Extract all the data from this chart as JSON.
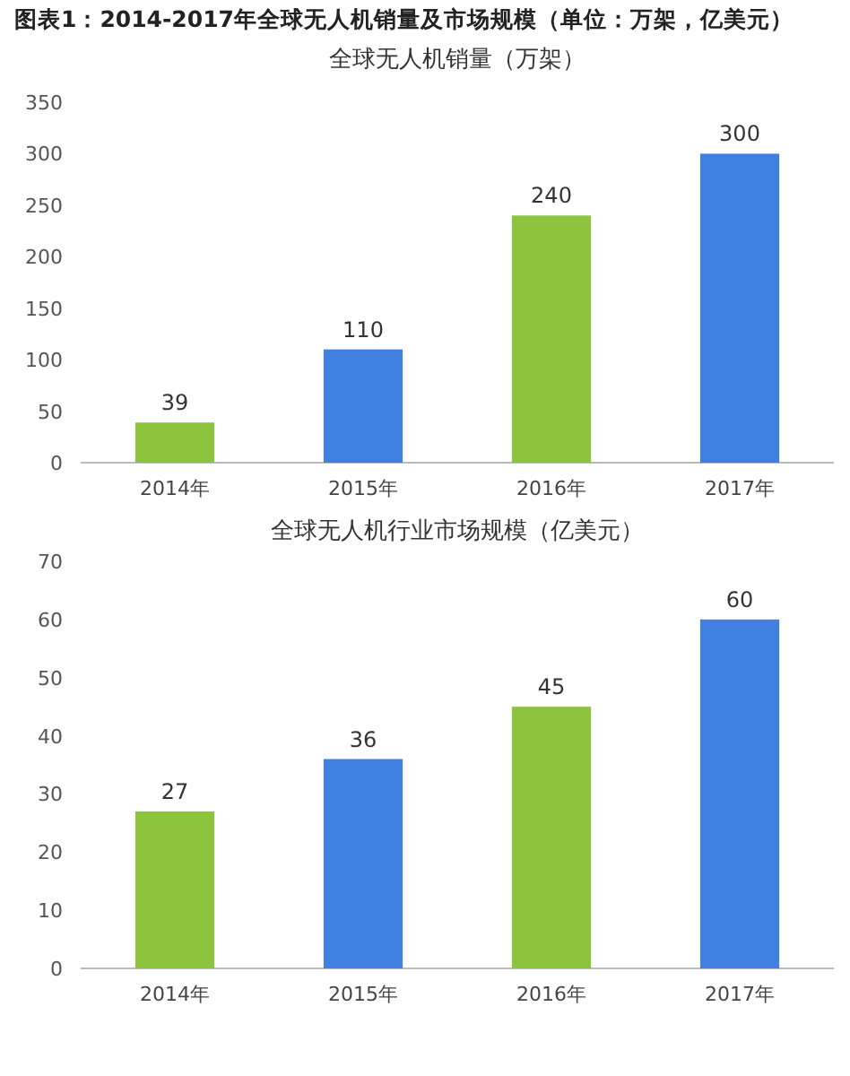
{
  "chart_data": [
    {
      "type": "bar",
      "title": "图表1：2014-2017年全球无人机销量及市场规模（单位：万架，亿美元）",
      "subtitle": "全球无人机销量（万架）",
      "categories": [
        "2014年",
        "2015年",
        "2016年",
        "2017年"
      ],
      "values": [
        39,
        110,
        240,
        300
      ],
      "colors": [
        "#8cc43e",
        "#3f80e0",
        "#8cc43e",
        "#3f80e0"
      ],
      "ylim": [
        0,
        350
      ],
      "yticks": [
        0,
        50,
        100,
        150,
        200,
        250,
        300,
        350
      ],
      "data_labels": true,
      "grid": false
    },
    {
      "type": "bar",
      "title": "全球无人机行业市场规模（亿美元）",
      "categories": [
        "2014年",
        "2015年",
        "2016年",
        "2017年"
      ],
      "values": [
        27,
        36,
        45,
        60
      ],
      "colors": [
        "#8cc43e",
        "#3f80e0",
        "#8cc43e",
        "#3f80e0"
      ],
      "ylim": [
        0,
        70
      ],
      "yticks": [
        0,
        10,
        20,
        30,
        40,
        50,
        60,
        70
      ],
      "data_labels": true,
      "grid": false
    }
  ]
}
